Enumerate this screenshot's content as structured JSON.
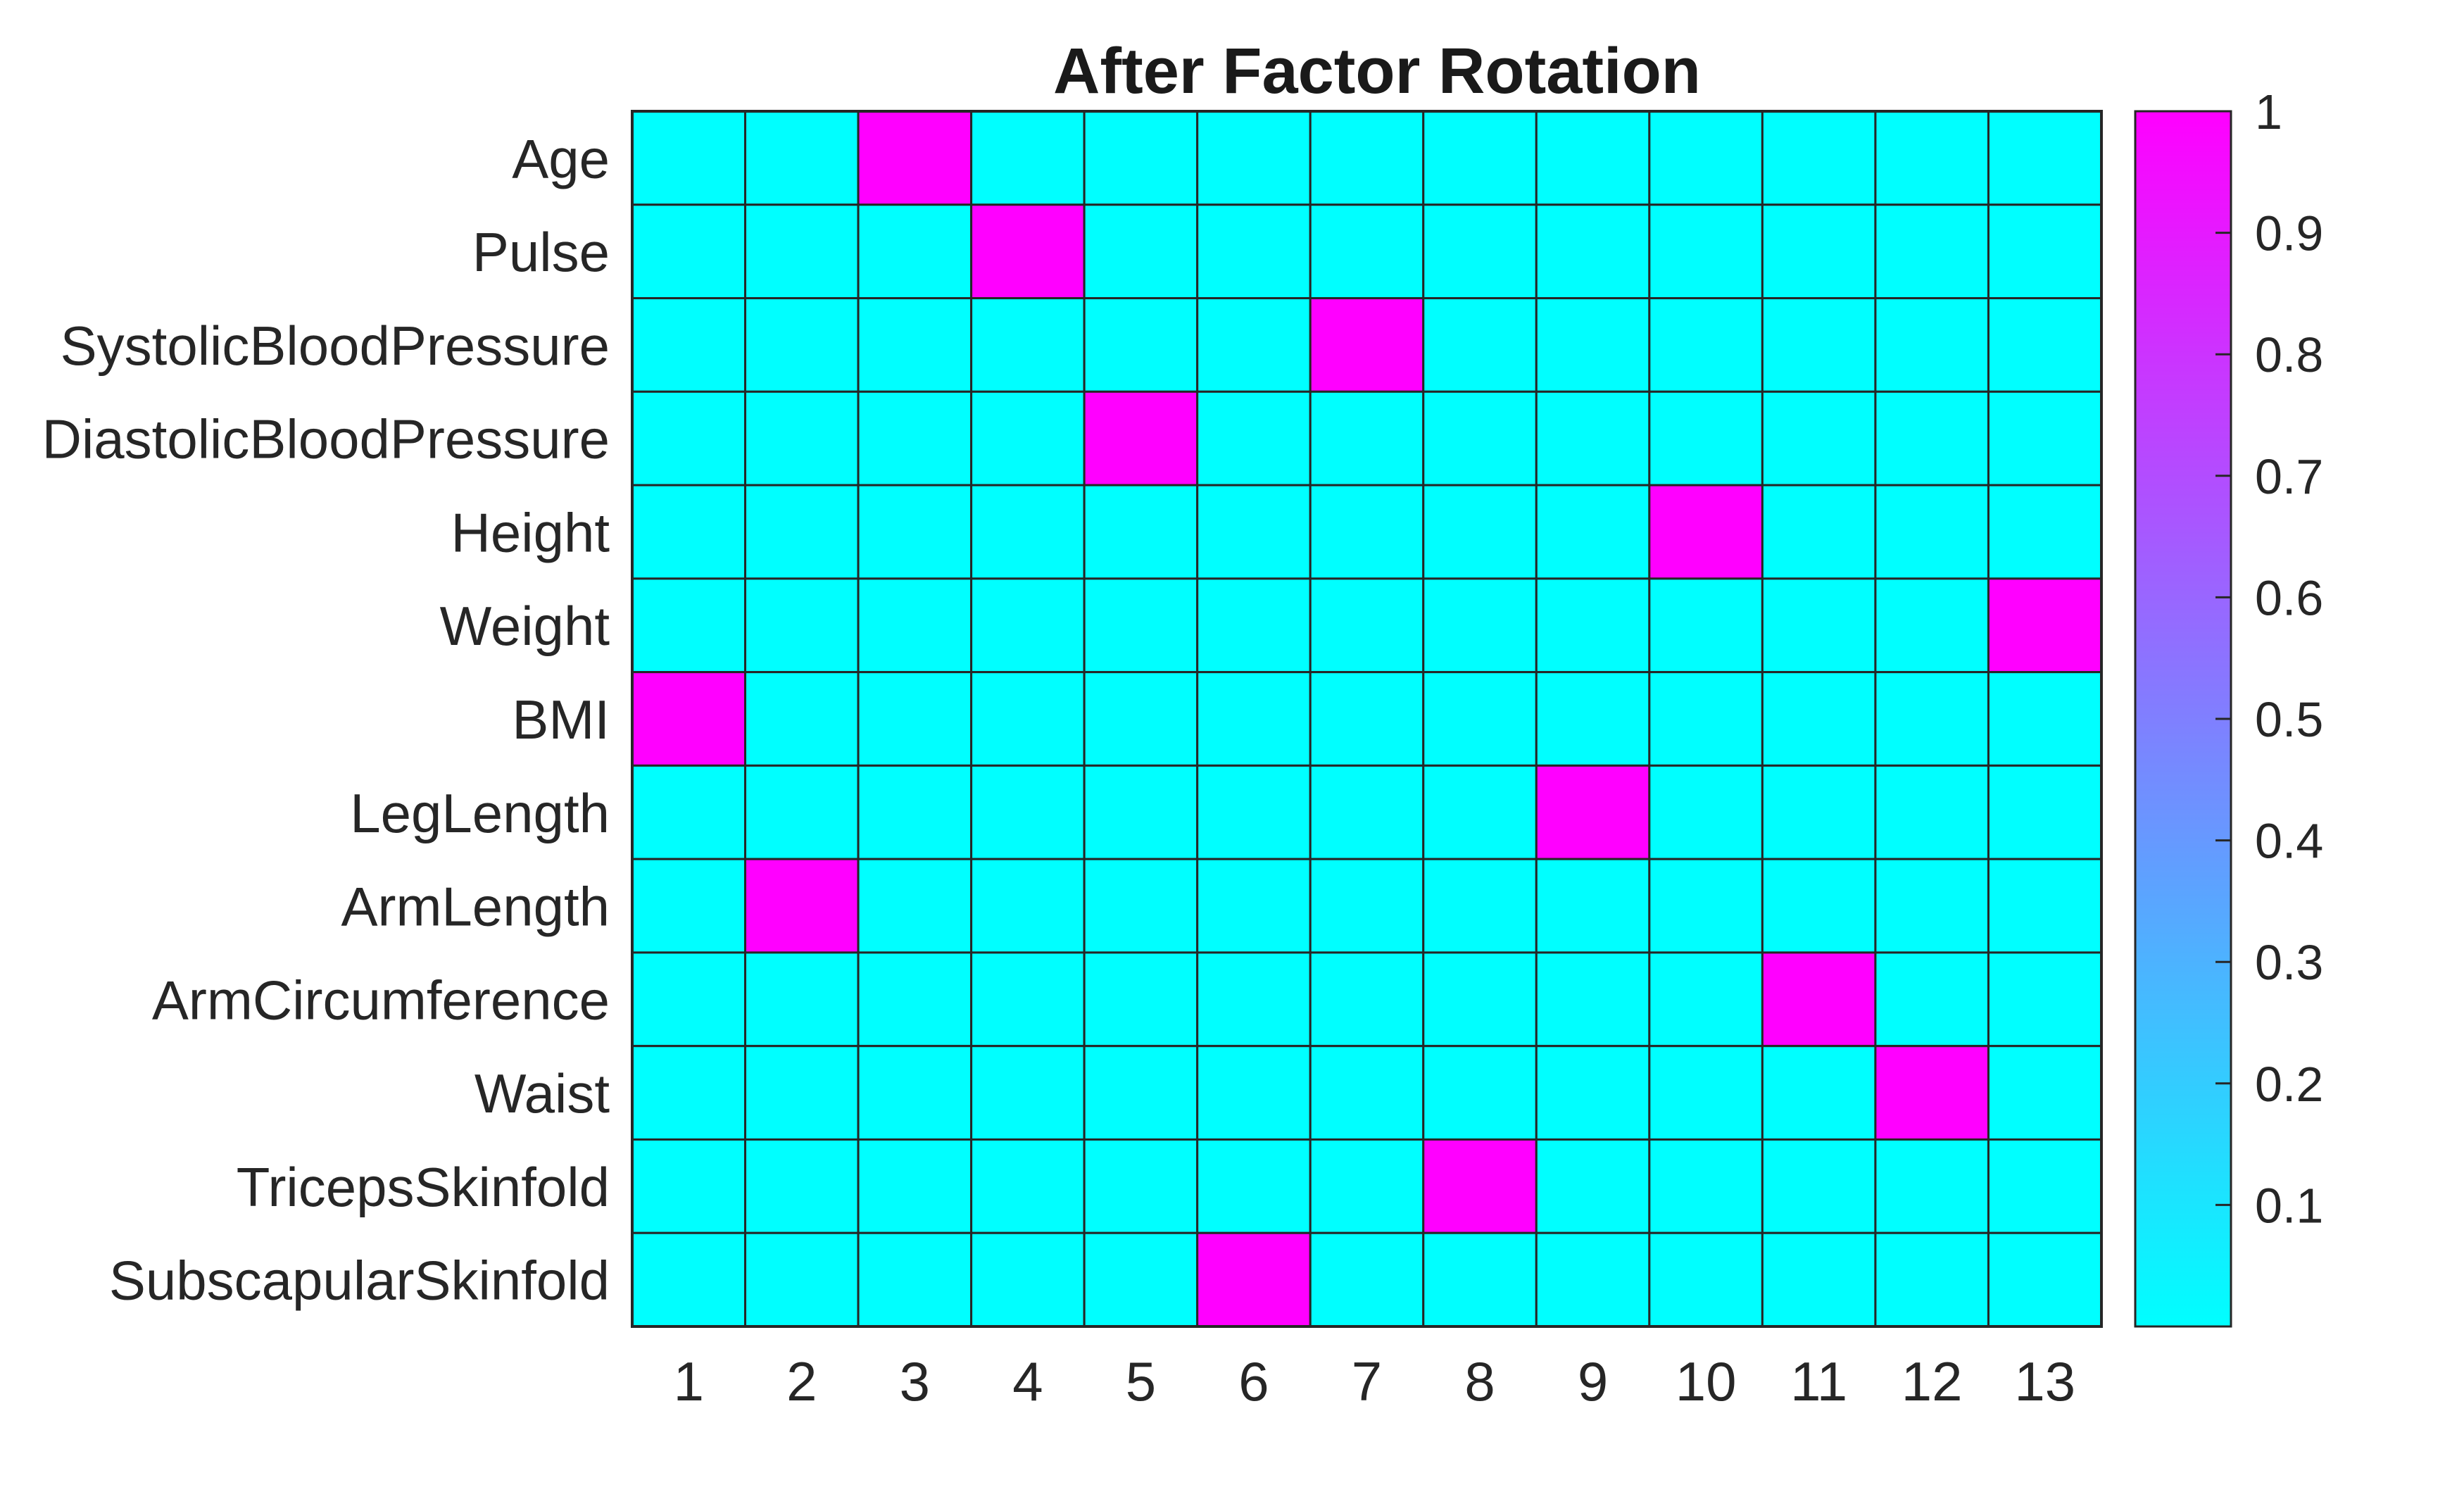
{
  "chart_data": {
    "type": "heatmap",
    "title": "After Factor Rotation",
    "xlabel": "",
    "ylabel": "",
    "rows": [
      "Age",
      "Pulse",
      "SystolicBloodPressure",
      "DiastolicBloodPressure",
      "Height",
      "Weight",
      "BMI",
      "LegLength",
      "ArmLength",
      "ArmCircumference",
      "Waist",
      "TricepsSkinfold",
      "SubscapularSkinfold"
    ],
    "columns": [
      "1",
      "2",
      "3",
      "4",
      "5",
      "6",
      "7",
      "8",
      "9",
      "10",
      "11",
      "12",
      "13"
    ],
    "values": [
      [
        0,
        0,
        1,
        0,
        0,
        0,
        0,
        0,
        0,
        0,
        0,
        0,
        0
      ],
      [
        0,
        0,
        0,
        1,
        0,
        0,
        0,
        0,
        0,
        0,
        0,
        0,
        0
      ],
      [
        0,
        0,
        0,
        0,
        0,
        0,
        1,
        0,
        0,
        0,
        0,
        0,
        0
      ],
      [
        0,
        0,
        0,
        0,
        1,
        0,
        0,
        0,
        0,
        0,
        0,
        0,
        0
      ],
      [
        0,
        0,
        0,
        0,
        0,
        0,
        0,
        0,
        0,
        1,
        0,
        0,
        0
      ],
      [
        0,
        0,
        0,
        0,
        0,
        0,
        0,
        0,
        0,
        0,
        0,
        0,
        1
      ],
      [
        1,
        0,
        0,
        0,
        0,
        0,
        0,
        0,
        0,
        0,
        0,
        0,
        0
      ],
      [
        0,
        0,
        0,
        0,
        0,
        0,
        0,
        0,
        1,
        0,
        0,
        0,
        0
      ],
      [
        0,
        1,
        0,
        0,
        0,
        0,
        0,
        0,
        0,
        0,
        0,
        0,
        0
      ],
      [
        0,
        0,
        0,
        0,
        0,
        0,
        0,
        0,
        0,
        0,
        1,
        0,
        0
      ],
      [
        0,
        0,
        0,
        0,
        0,
        0,
        0,
        0,
        0,
        0,
        0,
        1,
        0
      ],
      [
        0,
        0,
        0,
        0,
        0,
        0,
        0,
        1,
        0,
        0,
        0,
        0,
        0
      ],
      [
        0,
        0,
        0,
        0,
        0,
        1,
        0,
        0,
        0,
        0,
        0,
        0,
        0
      ]
    ],
    "colormap": "cool",
    "color_low": "#00FFFF",
    "color_high": "#FF00FF",
    "colorbar": {
      "range": [
        0,
        1
      ],
      "ticks": [
        0.1,
        0.2,
        0.3,
        0.4,
        0.5,
        0.6,
        0.7,
        0.8,
        0.9,
        1
      ],
      "tick_labels": [
        "0.1",
        "0.2",
        "0.3",
        "0.4",
        "0.5",
        "0.6",
        "0.7",
        "0.8",
        "0.9",
        "1"
      ]
    },
    "grid": true,
    "legend": "colorbar-right"
  }
}
